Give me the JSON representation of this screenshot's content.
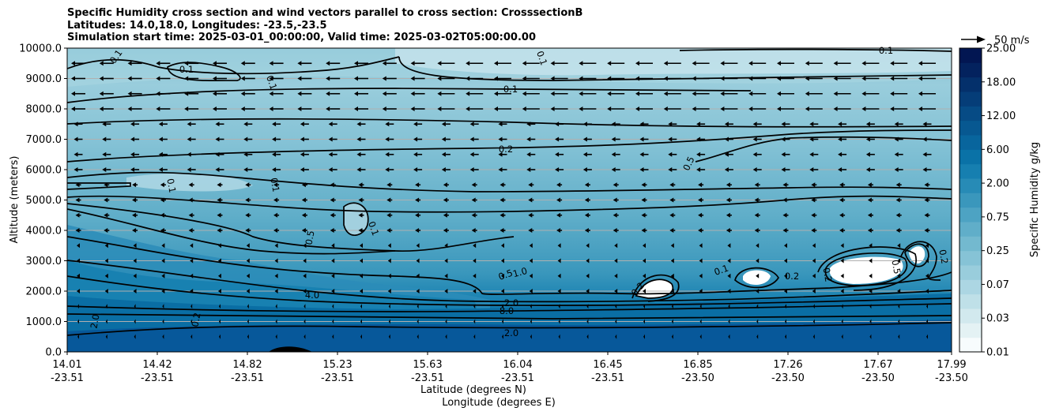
{
  "chart_data": {
    "type": "contour",
    "title_lines": [
      "Specific Humidity cross section and wind vectors parallel to cross section: CrosssectionB",
      "Latitudes: 14.0,18.0, Longitudes: -23.5,-23.5",
      "Simulation start time: 2025-03-01_00:00:00, Valid time: 2025-03-02T05:00:00.00"
    ],
    "ylabel": "Altitude (meters)",
    "xlabel_lat": "Latitude (degrees N)",
    "xlabel_lon": "Longitude (degrees E)",
    "ylim": [
      0,
      10000
    ],
    "y_ticks": [
      "0.0",
      "1000.0",
      "2000.0",
      "3000.0",
      "4000.0",
      "5000.0",
      "6000.0",
      "7000.0",
      "8000.0",
      "9000.0",
      "10000.0"
    ],
    "x_ticks": [
      {
        "lat": "14.01",
        "lon": "-23.51"
      },
      {
        "lat": "14.42",
        "lon": "-23.51"
      },
      {
        "lat": "14.82",
        "lon": "-23.51"
      },
      {
        "lat": "15.23",
        "lon": "-23.51"
      },
      {
        "lat": "15.63",
        "lon": "-23.51"
      },
      {
        "lat": "16.04",
        "lon": "-23.51"
      },
      {
        "lat": "16.45",
        "lon": "-23.51"
      },
      {
        "lat": "16.85",
        "lon": "-23.50"
      },
      {
        "lat": "17.26",
        "lon": "-23.50"
      },
      {
        "lat": "17.67",
        "lon": "-23.50"
      },
      {
        "lat": "17.99",
        "lon": "-23.50"
      }
    ],
    "colorbar_label": "Specific Humidity g/kg",
    "colorbar_ticks": [
      "0.01",
      "0.03",
      "0.07",
      "0.25",
      "0.75",
      "2.00",
      "6.00",
      "12.00",
      "18.00",
      "25.00"
    ],
    "colorbar_colors": [
      "#f7fcfd",
      "#e4f2f4",
      "#d2e9ee",
      "#bfe0e8",
      "#acd6e3",
      "#99cddc",
      "#86c3d6",
      "#73b9cf",
      "#60aec9",
      "#4da3c3",
      "#3a97bc",
      "#278bb6",
      "#167fb0",
      "#0a72a7",
      "#08659d",
      "#075891",
      "#064b85",
      "#053d78",
      "#04306b",
      "#03225e",
      "#021652"
    ],
    "quiver_key_label": "50 m/s",
    "contour_labels": [
      "0.1",
      "0.1",
      "0.1",
      "0.1",
      "0.1",
      "0.1",
      "0.1",
      "0.2",
      "0.5",
      "0.1",
      "0.1",
      "0.5",
      "0.5",
      "1.0",
      "2.0",
      "8.0",
      "2.0",
      "4.0",
      "2.0",
      "0.2",
      "0.2",
      "0.1",
      "0.2",
      "0.2",
      "0.5",
      "0.2"
    ],
    "wind_rows_m": [
      9500,
      9000,
      8500,
      8000,
      7500,
      7000,
      6500,
      6000,
      5500,
      5000,
      4500,
      4000,
      3500,
      3000,
      2500,
      2000,
      1500,
      1000,
      500
    ]
  }
}
